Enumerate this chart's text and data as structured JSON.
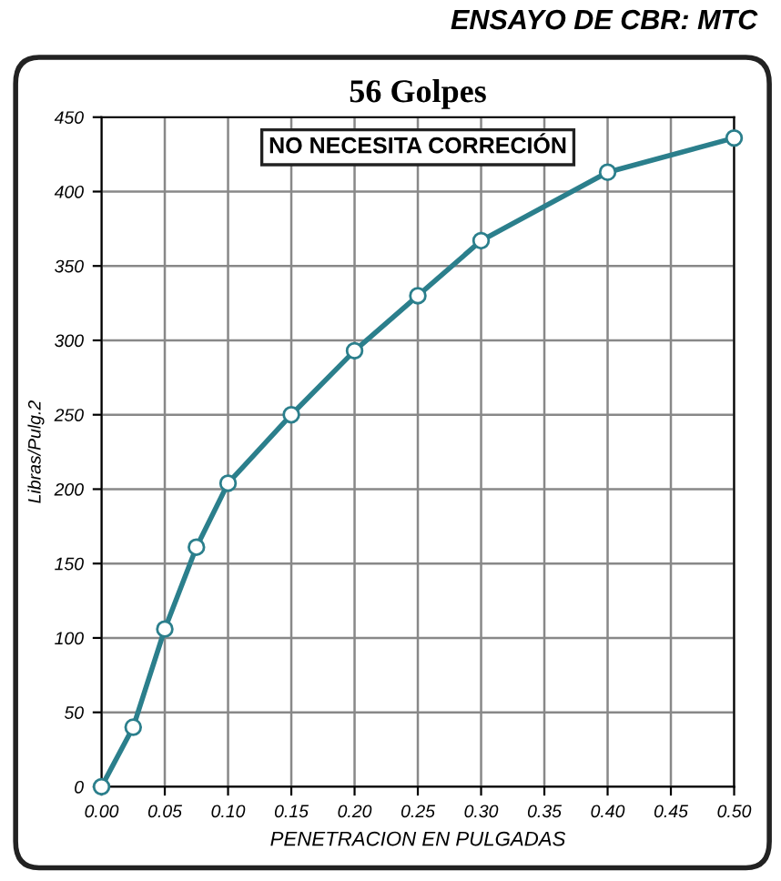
{
  "chart_data": {
    "type": "line",
    "title": "56 Golpes",
    "xlabel": "PENETRACION EN PULGADAS",
    "ylabel": "Libras/Pulg.2",
    "annotations": [
      "ENSAYO DE CBR: MTC",
      "NO NECESITA CORRECIÓN"
    ],
    "x": [
      0.0,
      0.025,
      0.05,
      0.075,
      0.1,
      0.15,
      0.2,
      0.25,
      0.3,
      0.4,
      0.5
    ],
    "series": [
      {
        "color": "#2b7f8c",
        "values": [
          0,
          40,
          106,
          161,
          204,
          250,
          293,
          330,
          367,
          413,
          436
        ]
      }
    ],
    "xlim": [
      0,
      0.5
    ],
    "ylim": [
      0,
      450
    ],
    "xticks": [
      {
        "value": 0,
        "label": "0.00"
      },
      0.05,
      {
        "value": 0.1,
        "label": "0.10"
      },
      0.15,
      {
        "value": 0.2,
        "label": "0.20"
      },
      0.25,
      {
        "value": 0.3,
        "label": "0.30"
      },
      0.35,
      {
        "value": 0.4,
        "label": "0.40"
      },
      0.45,
      {
        "value": 0.5,
        "label": "0.50"
      }
    ],
    "yticks": [
      0,
      50,
      100,
      150,
      200,
      250,
      300,
      350,
      400,
      450
    ],
    "grid": true,
    "legend": false,
    "marker": "circle",
    "line_style": "solid"
  }
}
